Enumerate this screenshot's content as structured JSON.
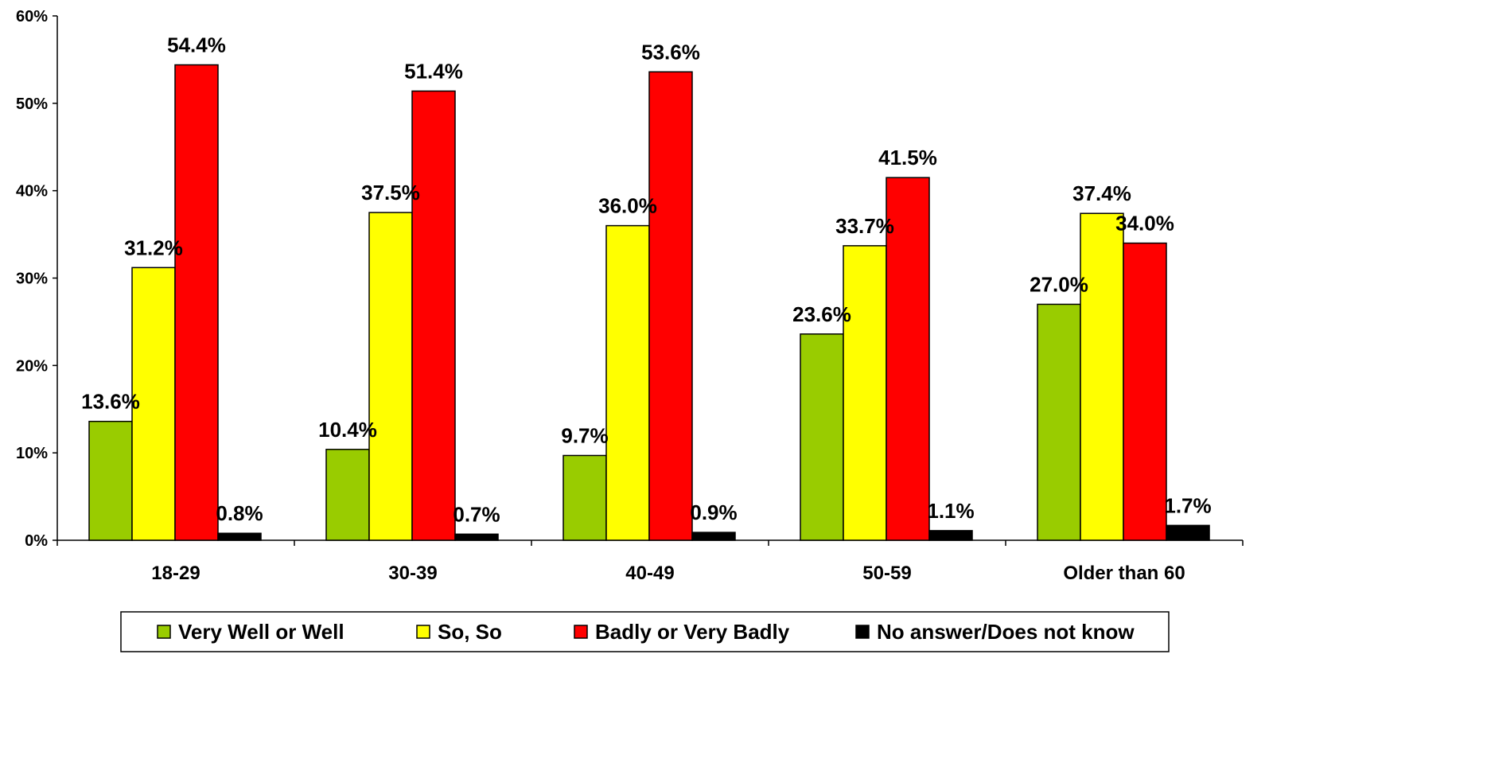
{
  "chart_data": {
    "type": "bar",
    "title": "",
    "xlabel": "",
    "ylabel": "",
    "ylim": [
      0,
      60
    ],
    "y_ticks": [
      "0%",
      "10%",
      "20%",
      "30%",
      "40%",
      "50%",
      "60%"
    ],
    "y_tick_values": [
      0,
      10,
      20,
      30,
      40,
      50,
      60
    ],
    "categories": [
      "18-29",
      "30-39",
      "40-49",
      "50-59",
      "Older than 60"
    ],
    "series": [
      {
        "name": "Very Well or Well",
        "color": "#99CC00",
        "values": [
          13.6,
          10.4,
          9.7,
          23.6,
          27.0
        ],
        "labels": [
          "13.6%",
          "10.4%",
          "9.7%",
          "23.6%",
          "27.0%"
        ]
      },
      {
        "name": "So, So",
        "color": "#FFFF00",
        "values": [
          31.2,
          37.5,
          36.0,
          33.7,
          37.4
        ],
        "labels": [
          "31.2%",
          "37.5%",
          "36.0%",
          "33.7%",
          "37.4%"
        ]
      },
      {
        "name": "Badly or Very Badly",
        "color": "#FF0000",
        "values": [
          54.4,
          51.4,
          53.6,
          41.5,
          34.0
        ],
        "labels": [
          "54.4%",
          "51.4%",
          "53.6%",
          "41.5%",
          "34.0%"
        ]
      },
      {
        "name": "No answer/Does not know",
        "color": "#000000",
        "values": [
          0.8,
          0.7,
          0.9,
          1.1,
          1.7
        ],
        "labels": [
          "0.8%",
          "0.7%",
          "0.9%",
          "1.1%",
          "1.7%"
        ]
      }
    ],
    "grid": false,
    "legend_position": "bottom"
  }
}
